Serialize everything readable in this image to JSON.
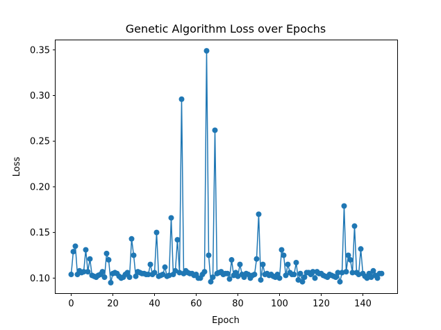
{
  "chart_data": {
    "type": "line",
    "title": "Genetic Algorithm Loss over Epochs",
    "xlabel": "Epoch",
    "ylabel": "Loss",
    "xlim": [
      -7.5,
      156.5
    ],
    "ylim": [
      0.0835,
      0.3605
    ],
    "xticks": [
      0,
      20,
      40,
      60,
      80,
      100,
      120,
      140
    ],
    "xtick_labels": [
      "0",
      "20",
      "40",
      "60",
      "80",
      "100",
      "120",
      "140"
    ],
    "yticks": [
      0.1,
      0.15,
      0.2,
      0.25,
      0.3,
      0.35
    ],
    "ytick_labels": [
      "0.10",
      "0.15",
      "0.20",
      "0.25",
      "0.30",
      "0.35"
    ],
    "grid": false,
    "series": [
      {
        "color": "#1f77b4",
        "marker": "circle",
        "x": [
          0,
          1,
          2,
          3,
          4,
          5,
          6,
          7,
          8,
          9,
          10,
          11,
          12,
          13,
          14,
          15,
          16,
          17,
          18,
          19,
          20,
          21,
          22,
          23,
          24,
          25,
          26,
          27,
          28,
          29,
          30,
          31,
          32,
          33,
          34,
          35,
          36,
          37,
          38,
          39,
          40,
          41,
          42,
          43,
          44,
          45,
          46,
          47,
          48,
          49,
          50,
          51,
          52,
          53,
          54,
          55,
          56,
          57,
          58,
          59,
          60,
          61,
          62,
          63,
          64,
          65,
          66,
          67,
          68,
          69,
          70,
          71,
          72,
          73,
          74,
          75,
          76,
          77,
          78,
          79,
          80,
          81,
          82,
          83,
          84,
          85,
          86,
          87,
          88,
          89,
          90,
          91,
          92,
          93,
          94,
          95,
          96,
          97,
          98,
          99,
          100,
          101,
          102,
          103,
          104,
          105,
          106,
          107,
          108,
          109,
          110,
          111,
          112,
          113,
          114,
          115,
          116,
          117,
          118,
          119,
          120,
          121,
          122,
          123,
          124,
          125,
          126,
          127,
          128,
          129,
          130,
          131,
          132,
          133,
          134,
          135,
          136,
          137,
          138,
          139,
          140,
          141,
          142,
          143,
          144,
          145,
          146,
          147,
          148,
          149
        ],
        "y": [
          0.104,
          0.129,
          0.135,
          0.104,
          0.108,
          0.106,
          0.107,
          0.131,
          0.107,
          0.121,
          0.103,
          0.102,
          0.101,
          0.103,
          0.104,
          0.107,
          0.101,
          0.127,
          0.12,
          0.095,
          0.105,
          0.106,
          0.105,
          0.102,
          0.1,
          0.101,
          0.104,
          0.106,
          0.101,
          0.143,
          0.125,
          0.102,
          0.107,
          0.106,
          0.105,
          0.105,
          0.104,
          0.104,
          0.115,
          0.104,
          0.106,
          0.15,
          0.102,
          0.103,
          0.104,
          0.112,
          0.102,
          0.103,
          0.166,
          0.104,
          0.108,
          0.142,
          0.106,
          0.296,
          0.105,
          0.108,
          0.106,
          0.105,
          0.105,
          0.103,
          0.104,
          0.1,
          0.1,
          0.104,
          0.107,
          0.349,
          0.125,
          0.096,
          0.101,
          0.262,
          0.105,
          0.106,
          0.107,
          0.104,
          0.105,
          0.105,
          0.099,
          0.12,
          0.103,
          0.106,
          0.102,
          0.115,
          0.104,
          0.101,
          0.105,
          0.104,
          0.1,
          0.103,
          0.104,
          0.121,
          0.17,
          0.098,
          0.115,
          0.104,
          0.105,
          0.103,
          0.104,
          0.102,
          0.101,
          0.104,
          0.1,
          0.131,
          0.125,
          0.103,
          0.115,
          0.106,
          0.104,
          0.104,
          0.117,
          0.098,
          0.105,
          0.096,
          0.101,
          0.106,
          0.106,
          0.104,
          0.107,
          0.1,
          0.107,
          0.105,
          0.105,
          0.103,
          0.102,
          0.101,
          0.104,
          0.103,
          0.102,
          0.101,
          0.106,
          0.096,
          0.106,
          0.179,
          0.107,
          0.125,
          0.12,
          0.106,
          0.157,
          0.106,
          0.104,
          0.132,
          0.105,
          0.102,
          0.1,
          0.105,
          0.101,
          0.108,
          0.103,
          0.1,
          0.105,
          0.105
        ]
      }
    ]
  }
}
